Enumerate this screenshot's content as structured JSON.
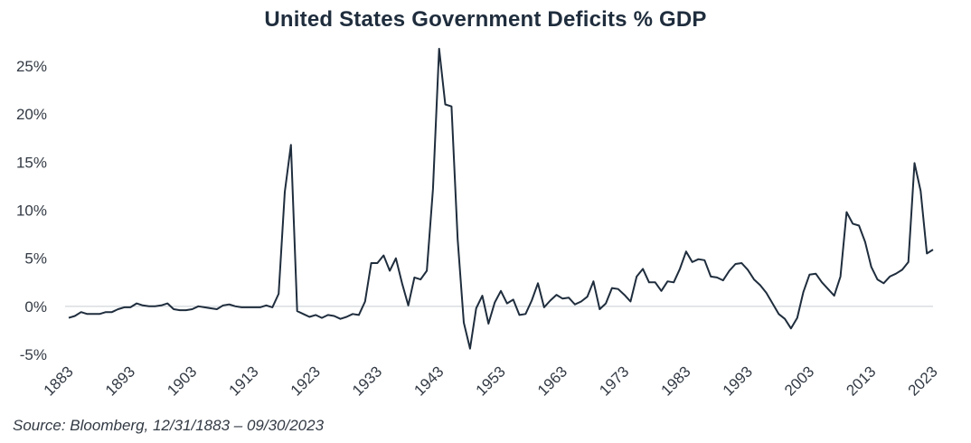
{
  "chart_data": {
    "type": "line",
    "title": "United States Government Deficits % GDP",
    "xlabel": "",
    "ylabel": "",
    "ylim": [
      -5,
      25
    ],
    "xlim": [
      1883,
      2023
    ],
    "y_ticks": [
      25,
      20,
      15,
      10,
      5,
      0,
      -5
    ],
    "y_tick_labels": [
      "25%",
      "20%",
      "15%",
      "10%",
      "5%",
      "0%",
      "-5%"
    ],
    "x_ticks": [
      1883,
      1893,
      1903,
      1913,
      1923,
      1933,
      1943,
      1953,
      1963,
      1973,
      1983,
      1993,
      2003,
      2013,
      2023
    ],
    "x_tick_labels": [
      "1883",
      "1893",
      "1903",
      "1913",
      "1923",
      "1933",
      "1943",
      "1953",
      "1963",
      "1973",
      "1983",
      "1993",
      "2003",
      "2013",
      "2023"
    ],
    "grid": false,
    "baseline": 0,
    "series": [
      {
        "name": "Deficit % GDP",
        "color": "#1f2d3d",
        "x": [
          1883,
          1884,
          1885,
          1886,
          1887,
          1888,
          1889,
          1890,
          1891,
          1892,
          1893,
          1894,
          1895,
          1896,
          1897,
          1898,
          1899,
          1900,
          1901,
          1902,
          1903,
          1904,
          1905,
          1906,
          1907,
          1908,
          1909,
          1910,
          1911,
          1912,
          1913,
          1914,
          1915,
          1916,
          1917,
          1918,
          1919,
          1920,
          1921,
          1922,
          1923,
          1924,
          1925,
          1926,
          1927,
          1928,
          1929,
          1930,
          1931,
          1932,
          1933,
          1934,
          1935,
          1936,
          1937,
          1938,
          1939,
          1940,
          1941,
          1942,
          1943,
          1944,
          1945,
          1946,
          1947,
          1948,
          1949,
          1950,
          1951,
          1952,
          1953,
          1954,
          1955,
          1956,
          1957,
          1958,
          1959,
          1960,
          1961,
          1962,
          1963,
          1964,
          1965,
          1966,
          1967,
          1968,
          1969,
          1970,
          1971,
          1972,
          1973,
          1974,
          1975,
          1976,
          1977,
          1978,
          1979,
          1980,
          1981,
          1982,
          1983,
          1984,
          1985,
          1986,
          1987,
          1988,
          1989,
          1990,
          1991,
          1992,
          1993,
          1994,
          1995,
          1996,
          1997,
          1998,
          1999,
          2000,
          2001,
          2002,
          2003,
          2004,
          2005,
          2006,
          2007,
          2008,
          2009,
          2010,
          2011,
          2012,
          2013,
          2014,
          2015,
          2016,
          2017,
          2018,
          2019,
          2020,
          2021,
          2022,
          2023
        ],
        "values": [
          -1.2,
          -1.0,
          -0.6,
          -0.8,
          -0.8,
          -0.8,
          -0.6,
          -0.6,
          -0.3,
          -0.1,
          -0.1,
          0.3,
          0.1,
          0.0,
          0.0,
          0.1,
          0.3,
          -0.3,
          -0.4,
          -0.4,
          -0.3,
          0.0,
          -0.1,
          -0.2,
          -0.3,
          0.1,
          0.2,
          0.0,
          -0.1,
          -0.1,
          -0.1,
          -0.1,
          0.1,
          -0.1,
          1.3,
          11.9,
          16.8,
          -0.5,
          -0.8,
          -1.1,
          -0.9,
          -1.2,
          -0.9,
          -1.0,
          -1.3,
          -1.1,
          -0.8,
          -0.9,
          0.5,
          4.5,
          4.5,
          5.3,
          3.7,
          5.0,
          2.4,
          0.1,
          3.0,
          2.8,
          3.7,
          12.2,
          26.8,
          21.0,
          20.8,
          7.0,
          -1.7,
          -4.4,
          -0.2,
          1.1,
          -1.8,
          0.4,
          1.6,
          0.3,
          0.7,
          -0.9,
          -0.8,
          0.6,
          2.4,
          -0.1,
          0.6,
          1.2,
          0.8,
          0.9,
          0.2,
          0.5,
          1.0,
          2.6,
          -0.3,
          0.3,
          1.9,
          1.8,
          1.2,
          0.5,
          3.1,
          3.9,
          2.5,
          2.5,
          1.6,
          2.6,
          2.5,
          3.9,
          5.7,
          4.6,
          4.9,
          4.8,
          3.1,
          3.0,
          2.7,
          3.7,
          4.4,
          4.5,
          3.8,
          2.8,
          2.2,
          1.4,
          0.3,
          -0.8,
          -1.3,
          -2.3,
          -1.2,
          1.5,
          3.3,
          3.4,
          2.5,
          1.8,
          1.1,
          3.1,
          9.8,
          8.6,
          8.4,
          6.7,
          4.1,
          2.8,
          2.4,
          3.1,
          3.4,
          3.8,
          4.6,
          14.9,
          12.0,
          5.5,
          5.9
        ]
      }
    ],
    "source": "Source: Bloomberg, 12/31/1883 – 09/30/2023"
  }
}
